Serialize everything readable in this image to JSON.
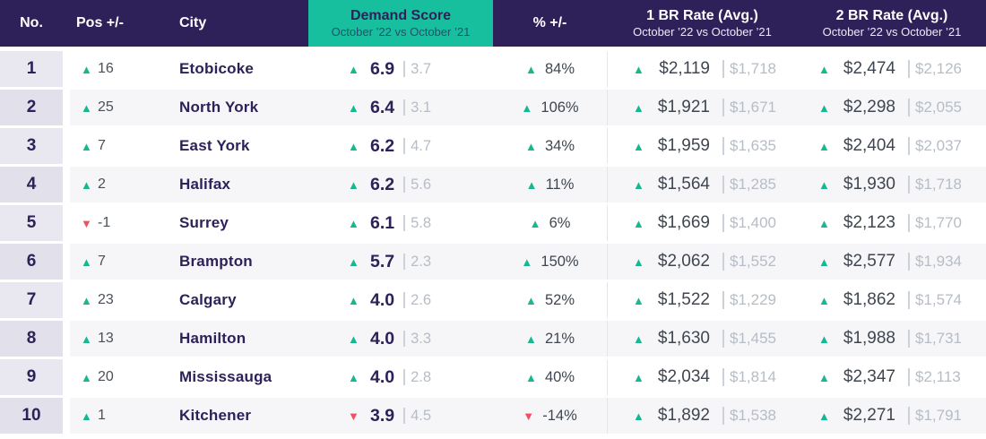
{
  "header": {
    "no": "No.",
    "pos": "Pos +/-",
    "city": "City",
    "demand_title": "Demand Score",
    "demand_subtitle": "October ’22 vs October ’21",
    "pct": "% +/-",
    "br1_title": "1 BR Rate (Avg.)",
    "br1_subtitle": "October ’22 vs October ’21",
    "br2_title": "2 BR Rate (Avg.)",
    "br2_subtitle": "October ’22 vs October ’21"
  },
  "colors": {
    "navy": "#2e2159",
    "teal": "#17bf9e",
    "green_up": "#17b890",
    "red_down": "#f25060",
    "current_value_text": "#3f4650",
    "previous_value_text": "#b6bdc6",
    "row_stripe": "#f6f6f9",
    "rank_column_bg": "#e9e8f0"
  },
  "rows": [
    {
      "no": "1",
      "pos_dir": "up",
      "pos": "16",
      "city": "Etobicoke",
      "score_dir": "up",
      "score": "6.9",
      "score_prev": "3.7",
      "pct_dir": "up",
      "pct": "84%",
      "br1_dir": "up",
      "br1": "$2,119",
      "br1_prev": "$1,718",
      "br2_dir": "up",
      "br2": "$2,474",
      "br2_prev": "$2,126"
    },
    {
      "no": "2",
      "pos_dir": "up",
      "pos": "25",
      "city": "North York",
      "score_dir": "up",
      "score": "6.4",
      "score_prev": "3.1",
      "pct_dir": "up",
      "pct": "106%",
      "br1_dir": "up",
      "br1": "$1,921",
      "br1_prev": "$1,671",
      "br2_dir": "up",
      "br2": "$2,298",
      "br2_prev": "$2,055"
    },
    {
      "no": "3",
      "pos_dir": "up",
      "pos": "7",
      "city": "East York",
      "score_dir": "up",
      "score": "6.2",
      "score_prev": "4.7",
      "pct_dir": "up",
      "pct": "34%",
      "br1_dir": "up",
      "br1": "$1,959",
      "br1_prev": "$1,635",
      "br2_dir": "up",
      "br2": "$2,404",
      "br2_prev": "$2,037"
    },
    {
      "no": "4",
      "pos_dir": "up",
      "pos": "2",
      "city": "Halifax",
      "score_dir": "up",
      "score": "6.2",
      "score_prev": "5.6",
      "pct_dir": "up",
      "pct": "11%",
      "br1_dir": "up",
      "br1": "$1,564",
      "br1_prev": "$1,285",
      "br2_dir": "up",
      "br2": "$1,930",
      "br2_prev": "$1,718"
    },
    {
      "no": "5",
      "pos_dir": "down",
      "pos": "-1",
      "city": "Surrey",
      "score_dir": "up",
      "score": "6.1",
      "score_prev": "5.8",
      "pct_dir": "up",
      "pct": "6%",
      "br1_dir": "up",
      "br1": "$1,669",
      "br1_prev": "$1,400",
      "br2_dir": "up",
      "br2": "$2,123",
      "br2_prev": "$1,770"
    },
    {
      "no": "6",
      "pos_dir": "up",
      "pos": "7",
      "city": "Brampton",
      "score_dir": "up",
      "score": "5.7",
      "score_prev": "2.3",
      "pct_dir": "up",
      "pct": "150%",
      "br1_dir": "up",
      "br1": "$2,062",
      "br1_prev": "$1,552",
      "br2_dir": "up",
      "br2": "$2,577",
      "br2_prev": "$1,934"
    },
    {
      "no": "7",
      "pos_dir": "up",
      "pos": "23",
      "city": "Calgary",
      "score_dir": "up",
      "score": "4.0",
      "score_prev": "2.6",
      "pct_dir": "up",
      "pct": "52%",
      "br1_dir": "up",
      "br1": "$1,522",
      "br1_prev": "$1,229",
      "br2_dir": "up",
      "br2": "$1,862",
      "br2_prev": "$1,574"
    },
    {
      "no": "8",
      "pos_dir": "up",
      "pos": "13",
      "city": "Hamilton",
      "score_dir": "up",
      "score": "4.0",
      "score_prev": "3.3",
      "pct_dir": "up",
      "pct": "21%",
      "br1_dir": "up",
      "br1": "$1,630",
      "br1_prev": "$1,455",
      "br2_dir": "up",
      "br2": "$1,988",
      "br2_prev": "$1,731"
    },
    {
      "no": "9",
      "pos_dir": "up",
      "pos": "20",
      "city": "Mississauga",
      "score_dir": "up",
      "score": "4.0",
      "score_prev": "2.8",
      "pct_dir": "up",
      "pct": "40%",
      "br1_dir": "up",
      "br1": "$2,034",
      "br1_prev": "$1,814",
      "br2_dir": "up",
      "br2": "$2,347",
      "br2_prev": "$2,113"
    },
    {
      "no": "10",
      "pos_dir": "up",
      "pos": "1",
      "city": "Kitchener",
      "score_dir": "down",
      "score": "3.9",
      "score_prev": "4.5",
      "pct_dir": "down",
      "pct": "-14%",
      "br1_dir": "up",
      "br1": "$1,892",
      "br1_prev": "$1,538",
      "br2_dir": "up",
      "br2": "$2,271",
      "br2_prev": "$1,791"
    }
  ]
}
